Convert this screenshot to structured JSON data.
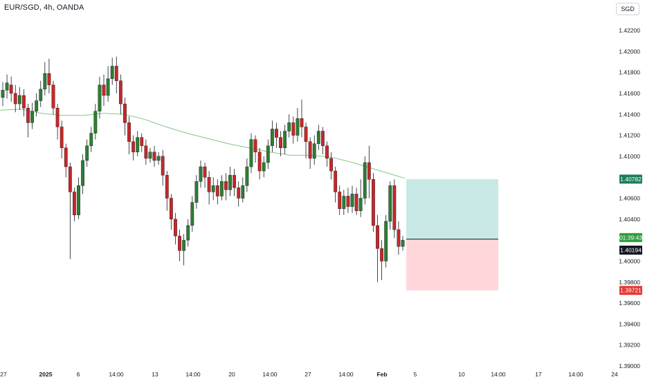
{
  "header": {
    "symbol_title": "EUR/SGD, 4h, OANDA",
    "currency_badge": "SGD"
  },
  "colors": {
    "up": "#26a69a",
    "down": "#ef5350",
    "up_body": "#2e7d32",
    "down_body": "#c62828",
    "ma_line": "#81c784",
    "target_zone": "#b2dfdb",
    "stop_zone": "#ffcdd2",
    "price_tag_current": "#131722",
    "price_tag_target": "#1b7f5a",
    "price_tag_stop": "#e53935",
    "countdown_tag": "#2e9e3e"
  },
  "chart_data": {
    "type": "candlestick",
    "title": "EUR/SGD, 4h, OANDA",
    "ylim": [
      1.389,
      1.4235
    ],
    "y_ticks": [
      "1.42200",
      "1.42000",
      "1.41800",
      "1.41600",
      "1.41400",
      "1.41200",
      "1.41000",
      "1.40600",
      "1.40400",
      "1.40000",
      "1.39800",
      "1.39600",
      "1.39400",
      "1.39200",
      "1.39000"
    ],
    "x_ticks": [
      "27",
      "2025",
      "6",
      "14:00",
      "13",
      "14:00",
      "20",
      "14:00",
      "27",
      "14:00",
      "Feb",
      "5",
      "10",
      "14:00",
      "17",
      "14:00",
      "24"
    ],
    "price_labels": {
      "target": "1.40782",
      "countdown": "01:39:43",
      "current": "1.40194",
      "stop": "1.39721"
    },
    "position": {
      "entry": 1.4021,
      "target": 1.40782,
      "stop": 1.39721,
      "start_tick": "5",
      "end": "14:00"
    },
    "moving_average": [
      [
        0,
        1.4144
      ],
      [
        30,
        1.4145
      ],
      [
        60,
        1.4141
      ],
      [
        90,
        1.4139
      ],
      [
        120,
        1.4139
      ],
      [
        150,
        1.4141
      ],
      [
        180,
        1.414
      ],
      [
        210,
        1.4135
      ],
      [
        240,
        1.4128
      ],
      [
        270,
        1.4122
      ],
      [
        300,
        1.4117
      ],
      [
        330,
        1.4112
      ],
      [
        360,
        1.4108
      ],
      [
        390,
        1.4104
      ],
      [
        420,
        1.4101
      ],
      [
        450,
        1.4101
      ],
      [
        480,
        1.4099
      ],
      [
        510,
        1.4094
      ],
      [
        540,
        1.4088
      ],
      [
        585,
        1.4079
      ]
    ],
    "candles": [
      [
        0,
        1.4156,
        1.4163,
        1.4148,
        1.4171
      ],
      [
        1,
        1.4163,
        1.417,
        1.4155,
        1.4178
      ],
      [
        2,
        1.4168,
        1.416,
        1.4152,
        1.4176
      ],
      [
        3,
        1.416,
        1.415,
        1.4142,
        1.4168
      ],
      [
        4,
        1.415,
        1.4158,
        1.4144,
        1.4166
      ],
      [
        5,
        1.4158,
        1.4146,
        1.4138,
        1.4164
      ],
      [
        6,
        1.4146,
        1.4132,
        1.4118,
        1.415
      ],
      [
        7,
        1.4132,
        1.4143,
        1.4126,
        1.4151
      ],
      [
        8,
        1.4143,
        1.4153,
        1.4138,
        1.416
      ],
      [
        9,
        1.4153,
        1.4164,
        1.4147,
        1.4172
      ],
      [
        10,
        1.4164,
        1.4179,
        1.4158,
        1.419
      ],
      [
        11,
        1.4179,
        1.4168,
        1.416,
        1.4193
      ],
      [
        12,
        1.4168,
        1.4146,
        1.414,
        1.4172
      ],
      [
        13,
        1.4146,
        1.4128,
        1.4116,
        1.415
      ],
      [
        14,
        1.4128,
        1.4108,
        1.4098,
        1.4134
      ],
      [
        15,
        1.4108,
        1.409,
        1.408,
        1.4112
      ],
      [
        16,
        1.409,
        1.4066,
        1.4002,
        1.4094
      ],
      [
        17,
        1.4066,
        1.4044,
        1.4038,
        1.407
      ],
      [
        18,
        1.4044,
        1.4072,
        1.404,
        1.408
      ],
      [
        19,
        1.4072,
        1.4096,
        1.4064,
        1.4102
      ],
      [
        20,
        1.4096,
        1.411,
        1.409,
        1.4116
      ],
      [
        21,
        1.411,
        1.4122,
        1.4104,
        1.4128
      ],
      [
        22,
        1.4122,
        1.4143,
        1.4116,
        1.415
      ],
      [
        23,
        1.4143,
        1.4168,
        1.4136,
        1.4176
      ],
      [
        24,
        1.4168,
        1.4158,
        1.4148,
        1.4178
      ],
      [
        25,
        1.4158,
        1.4174,
        1.4152,
        1.4186
      ],
      [
        26,
        1.4174,
        1.4186,
        1.4168,
        1.4194
      ],
      [
        27,
        1.4186,
        1.4172,
        1.416,
        1.4195
      ],
      [
        28,
        1.4172,
        1.415,
        1.414,
        1.4178
      ],
      [
        29,
        1.415,
        1.4132,
        1.412,
        1.4156
      ],
      [
        30,
        1.4132,
        1.4114,
        1.4102,
        1.4138
      ],
      [
        31,
        1.4114,
        1.4104,
        1.4096,
        1.412
      ],
      [
        32,
        1.4104,
        1.4118,
        1.41,
        1.4124
      ],
      [
        33,
        1.4118,
        1.411,
        1.4104,
        1.4122
      ],
      [
        34,
        1.411,
        1.4098,
        1.4092,
        1.4116
      ],
      [
        35,
        1.4098,
        1.4104,
        1.4094,
        1.4108
      ],
      [
        36,
        1.4104,
        1.4096,
        1.409,
        1.411
      ],
      [
        37,
        1.4096,
        1.41,
        1.4092,
        1.4104
      ],
      [
        38,
        1.41,
        1.4082,
        1.4072,
        1.4106
      ],
      [
        39,
        1.4082,
        1.406,
        1.4048,
        1.4086
      ],
      [
        40,
        1.406,
        1.404,
        1.403,
        1.4064
      ],
      [
        41,
        1.404,
        1.4024,
        1.4016,
        1.4046
      ],
      [
        42,
        1.4024,
        1.401,
        1.4,
        1.403
      ],
      [
        43,
        1.401,
        1.402,
        1.3996,
        1.4026
      ],
      [
        44,
        1.402,
        1.4034,
        1.4014,
        1.404
      ],
      [
        45,
        1.4034,
        1.4056,
        1.4028,
        1.4062
      ],
      [
        46,
        1.4056,
        1.4076,
        1.405,
        1.4082
      ],
      [
        47,
        1.4076,
        1.409,
        1.407,
        1.4096
      ],
      [
        48,
        1.409,
        1.408,
        1.407,
        1.4094
      ],
      [
        49,
        1.408,
        1.4066,
        1.4054,
        1.4086
      ],
      [
        50,
        1.4066,
        1.4072,
        1.4058,
        1.408
      ],
      [
        51,
        1.4072,
        1.4062,
        1.4054,
        1.4078
      ],
      [
        52,
        1.4062,
        1.4076,
        1.4058,
        1.4082
      ],
      [
        53,
        1.4076,
        1.4068,
        1.4058,
        1.4084
      ],
      [
        54,
        1.4068,
        1.4082,
        1.4062,
        1.409
      ],
      [
        55,
        1.4082,
        1.407,
        1.4062,
        1.4088
      ],
      [
        56,
        1.407,
        1.406,
        1.4052,
        1.4076
      ],
      [
        57,
        1.406,
        1.4072,
        1.4056,
        1.408
      ],
      [
        58,
        1.4072,
        1.409,
        1.4066,
        1.4098
      ],
      [
        59,
        1.409,
        1.4116,
        1.4084,
        1.4122
      ],
      [
        60,
        1.4116,
        1.4104,
        1.4094,
        1.412
      ],
      [
        61,
        1.4104,
        1.4086,
        1.4078,
        1.4108
      ],
      [
        62,
        1.4086,
        1.4094,
        1.408,
        1.41
      ],
      [
        63,
        1.4094,
        1.411,
        1.4088,
        1.4116
      ],
      [
        64,
        1.411,
        1.4126,
        1.4104,
        1.4134
      ],
      [
        65,
        1.4126,
        1.4118,
        1.4108,
        1.4132
      ],
      [
        66,
        1.4118,
        1.4108,
        1.41,
        1.4124
      ],
      [
        67,
        1.4108,
        1.4124,
        1.4102,
        1.413
      ],
      [
        68,
        1.4124,
        1.4132,
        1.4118,
        1.414
      ],
      [
        69,
        1.4132,
        1.412,
        1.4112,
        1.4138
      ],
      [
        70,
        1.412,
        1.4136,
        1.4114,
        1.4146
      ],
      [
        71,
        1.4136,
        1.4128,
        1.4118,
        1.4154
      ],
      [
        72,
        1.4128,
        1.4114,
        1.4098,
        1.4132
      ],
      [
        73,
        1.4114,
        1.4098,
        1.4088,
        1.4118
      ],
      [
        74,
        1.4098,
        1.4112,
        1.4092,
        1.412
      ],
      [
        75,
        1.4112,
        1.4124,
        1.4106,
        1.413
      ],
      [
        76,
        1.4124,
        1.411,
        1.4102,
        1.4128
      ],
      [
        77,
        1.411,
        1.4098,
        1.409,
        1.4114
      ],
      [
        78,
        1.4098,
        1.4086,
        1.4078,
        1.4104
      ],
      [
        79,
        1.4086,
        1.4066,
        1.4056,
        1.409
      ],
      [
        80,
        1.4066,
        1.405,
        1.4044,
        1.4072
      ],
      [
        81,
        1.405,
        1.4062,
        1.4044,
        1.4068
      ],
      [
        82,
        1.4062,
        1.4052,
        1.4046,
        1.407
      ],
      [
        83,
        1.4052,
        1.4064,
        1.4046,
        1.4072
      ],
      [
        84,
        1.4064,
        1.4048,
        1.4044,
        1.407
      ],
      [
        85,
        1.4048,
        1.406,
        1.4042,
        1.4078
      ],
      [
        86,
        1.406,
        1.4094,
        1.4054,
        1.41
      ],
      [
        87,
        1.4094,
        1.4078,
        1.406,
        1.411
      ],
      [
        88,
        1.4078,
        1.4034,
        1.4028,
        1.4084
      ],
      [
        89,
        1.4034,
        1.4012,
        1.398,
        1.4044
      ],
      [
        90,
        1.4012,
        1.4,
        1.3982,
        1.402
      ],
      [
        91,
        1.4,
        1.4038,
        1.3994,
        1.4044
      ],
      [
        92,
        1.4038,
        1.4072,
        1.403,
        1.4076
      ],
      [
        93,
        1.4072,
        1.403,
        1.4022,
        1.4078
      ],
      [
        94,
        1.403,
        1.4014,
        1.4006,
        1.4038
      ],
      [
        95,
        1.4014,
        1.402,
        1.401,
        1.4024
      ]
    ]
  }
}
